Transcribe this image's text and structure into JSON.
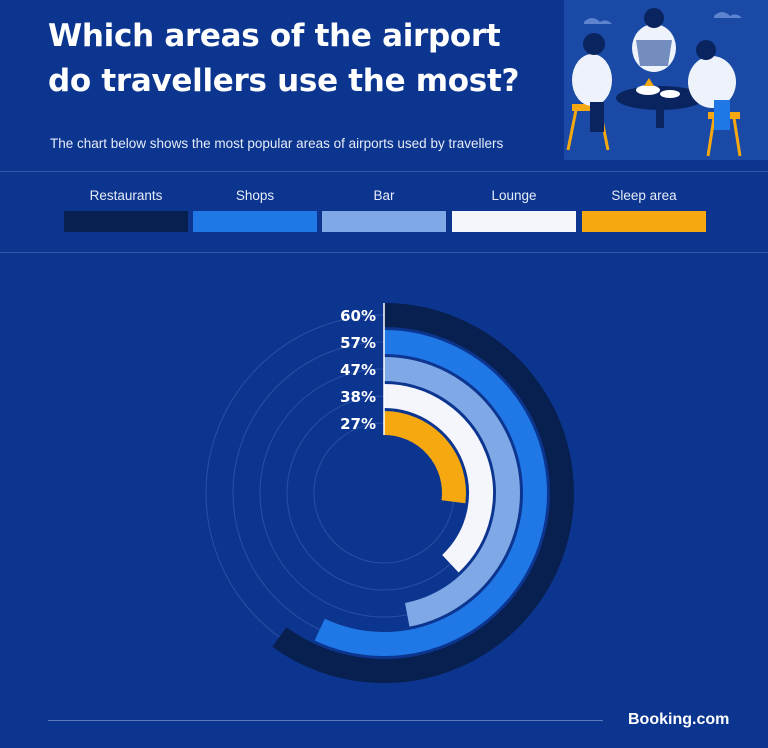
{
  "title_lines": [
    "Which areas of the airport",
    "do travellers use the most?"
  ],
  "subtitle": "The chart below shows the most popular areas of airports used by travellers",
  "brand": "Booking.com",
  "chart_data": {
    "type": "radial-bar",
    "title": "Which areas of the airport do travellers use the most?",
    "unit": "%",
    "categories": [
      "Restaurants",
      "Shops",
      "Bar",
      "Lounge",
      "Sleep area"
    ],
    "values": [
      60,
      57,
      47,
      38,
      27
    ],
    "value_labels": [
      "60%",
      "57%",
      "47%",
      "38%",
      "27%"
    ],
    "colors": [
      "#08204f",
      "#1f78e6",
      "#7fa8e6",
      "#f4f6fb",
      "#f5a80f"
    ],
    "legend_position": "top",
    "grid": true,
    "scale_max": 100
  }
}
